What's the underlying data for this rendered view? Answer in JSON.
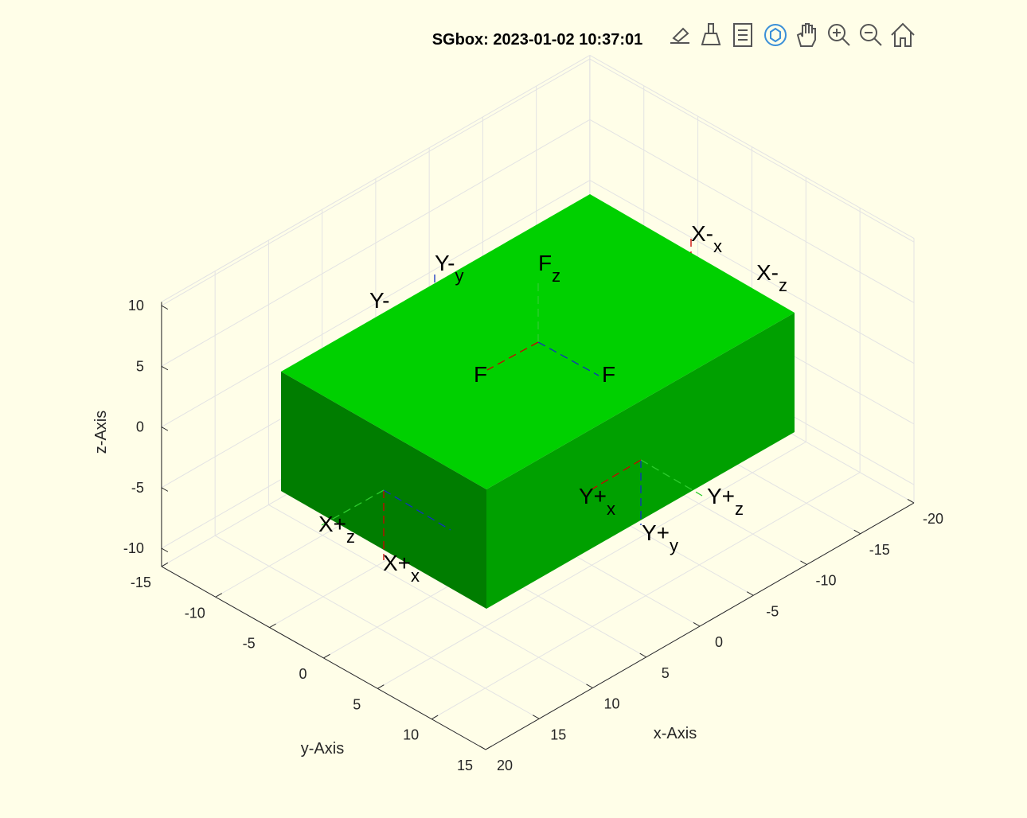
{
  "chart_data": {
    "type": "3d-box",
    "title": "SGbox: 2023-01-02 10:37:01",
    "xlabel": "x-Axis",
    "ylabel": "y-Axis",
    "zlabel": "z-Axis",
    "xlim": [
      -20,
      20
    ],
    "ylim": [
      -15,
      15
    ],
    "zlim": [
      -11.5,
      10.3
    ],
    "xticks": [
      -20,
      -15,
      -10,
      -5,
      0,
      5,
      10,
      15,
      20
    ],
    "yticks": [
      -15,
      -10,
      -5,
      0,
      5,
      10,
      15
    ],
    "zticks": [
      -10,
      -5,
      0,
      5,
      10
    ],
    "grid": true,
    "annotations": [
      {
        "text": "X-",
        "sub": "x"
      },
      {
        "text": "X-",
        "sub": "z"
      },
      {
        "text": "Y-",
        "sub": "y"
      },
      {
        "text": "Y-"
      },
      {
        "text": "F",
        "sub": "z"
      },
      {
        "text": "F"
      },
      {
        "text": "F"
      },
      {
        "text": "Y+",
        "sub": "x"
      },
      {
        "text": "Y+",
        "sub": "z"
      },
      {
        "text": "Y+",
        "sub": "y"
      },
      {
        "text": "X+",
        "sub": "z"
      },
      {
        "text": "X+",
        "sub": "x"
      }
    ]
  }
}
